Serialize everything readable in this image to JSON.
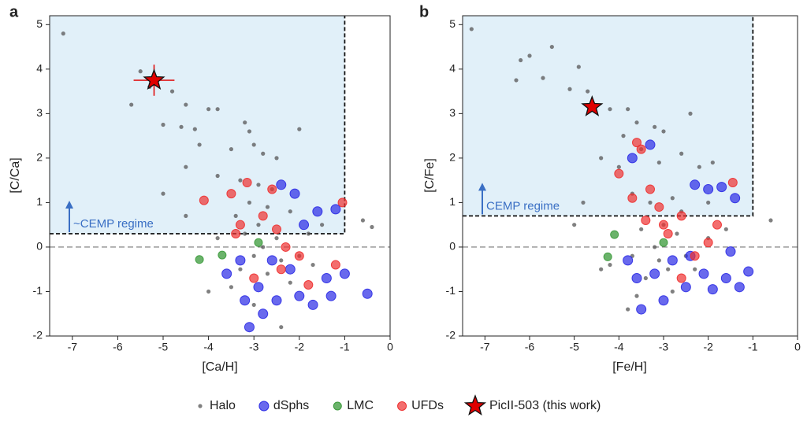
{
  "chart_data": [
    {
      "type": "scatter",
      "panel": "a",
      "xlabel": "[Ca/H]",
      "ylabel": "[C/Ca]",
      "xlim": [
        -7.5,
        0
      ],
      "ylim": [
        -2,
        5.2
      ],
      "xticks": [
        -7,
        -6,
        -5,
        -4,
        -3,
        -2,
        -1,
        0
      ],
      "yticks": [
        -2,
        -1,
        0,
        1,
        2,
        3,
        4,
        5
      ],
      "cemp": {
        "label": "~CEMP regime",
        "threshold_y": 0.3,
        "threshold_x": -1
      },
      "series": [
        {
          "name": "Halo",
          "color": "#555555",
          "x": [
            -7.2,
            -5.7,
            -5.5,
            -5.3,
            -4.8,
            -4.5,
            -4.3,
            -4.2,
            -4.6,
            -5.0,
            -4.0,
            -3.8,
            -3.2,
            -3.1,
            -3.5,
            -3.0,
            -2.8,
            -2.5,
            -2.0,
            -4.5,
            -3.8,
            -3.3,
            -2.9,
            -2.6,
            -3.1,
            -2.7,
            -3.4,
            -2.2,
            -2.9,
            -3.2,
            -2.5,
            -2.8,
            -3.0,
            -2.4,
            -3.3,
            -2.7,
            -2.0,
            -1.8,
            -1.5,
            -0.6,
            -0.4,
            -3.5,
            -3.0,
            -2.4,
            -4.5,
            -5.0,
            -4.0,
            -2.2,
            -1.7,
            -3.8
          ],
          "values": [
            4.8,
            3.2,
            3.95,
            3.6,
            3.5,
            3.2,
            2.65,
            2.3,
            2.7,
            2.75,
            3.1,
            3.1,
            2.8,
            2.6,
            2.2,
            2.3,
            2.1,
            2.0,
            2.65,
            1.8,
            1.6,
            1.5,
            1.4,
            1.3,
            1.0,
            0.9,
            0.7,
            0.8,
            0.5,
            0.3,
            0.2,
            0.0,
            -0.2,
            -0.3,
            -0.5,
            -0.6,
            -0.2,
            0.3,
            0.5,
            0.6,
            0.45,
            -0.9,
            -1.3,
            -1.8,
            0.7,
            1.2,
            -1.0,
            -0.8,
            -0.4,
            0.2
          ]
        },
        {
          "name": "dSphs",
          "color": "#2a2ae6",
          "x": [
            -3.1,
            -2.8,
            -2.5,
            -3.2,
            -2.0,
            -1.7,
            -1.3,
            -0.5,
            -1.0,
            -1.2,
            -2.4,
            -2.1,
            -1.6,
            -2.9,
            -3.6,
            -1.4,
            -2.6,
            -3.3,
            -2.2,
            -1.9
          ],
          "values": [
            -1.8,
            -1.5,
            -1.2,
            -1.2,
            -1.1,
            -1.3,
            -1.1,
            -1.05,
            -0.6,
            0.85,
            1.4,
            1.2,
            0.8,
            -0.9,
            -0.6,
            -0.7,
            -0.3,
            -0.3,
            -0.5,
            0.5
          ]
        },
        {
          "name": "LMC",
          "color": "#3a9a3a",
          "x": [
            -4.2,
            -3.7,
            -2.9
          ],
          "values": [
            -0.28,
            -0.18,
            0.1
          ]
        },
        {
          "name": "UFDs",
          "color": "#ee3030",
          "x": [
            -3.15,
            -3.5,
            -4.1,
            -2.6,
            -1.05,
            -1.2,
            -2.4,
            -3.4,
            -2.0,
            -2.8,
            -3.0,
            -1.8,
            -2.3,
            -3.3,
            -2.5
          ],
          "values": [
            1.45,
            1.2,
            1.05,
            1.3,
            1.0,
            -0.4,
            -0.5,
            0.3,
            -0.2,
            0.7,
            -0.7,
            -0.85,
            0.0,
            0.5,
            0.4
          ]
        },
        {
          "name": "PicII-503 (this work)",
          "color": "#e00000",
          "x": [
            -5.2
          ],
          "values": [
            3.75
          ],
          "xerr": [
            0.45
          ],
          "yerr": [
            0.35
          ]
        }
      ]
    },
    {
      "type": "scatter",
      "panel": "b",
      "xlabel": "[Fe/H]",
      "ylabel": "[C/Fe]",
      "xlim": [
        -7.5,
        0
      ],
      "ylim": [
        -2,
        5.2
      ],
      "xticks": [
        -7,
        -6,
        -5,
        -4,
        -3,
        -2,
        -1,
        0
      ],
      "yticks": [
        -2,
        -1,
        0,
        1,
        2,
        3,
        4,
        5
      ],
      "cemp": {
        "label": "CEMP regime",
        "threshold_y": 0.7,
        "threshold_x": -1
      },
      "series": [
        {
          "color": "#555555",
          "x": [
            -7.3,
            -6.3,
            -6.2,
            -6.0,
            -5.5,
            -5.1,
            -5.7,
            -4.9,
            -4.7,
            -4.2,
            -3.8,
            -3.6,
            -3.2,
            -3.0,
            -2.4,
            -3.9,
            -4.0,
            -4.4,
            -3.5,
            -3.1,
            -2.6,
            -1.9,
            -2.2,
            -3.7,
            -3.3,
            -2.8,
            -2.0,
            -4.8,
            -5.0,
            -3.0,
            -2.7,
            -3.2,
            -2.5,
            -2.9,
            -3.4,
            -2.3,
            -3.6,
            -3.8,
            -4.4,
            -4.2,
            -2.0,
            -1.6,
            -0.6,
            -3.5,
            -2.6,
            -3.1,
            -2.8,
            -3.7
          ],
          "values": [
            4.9,
            3.75,
            4.2,
            4.3,
            4.5,
            3.55,
            3.8,
            4.05,
            3.5,
            3.1,
            3.1,
            2.8,
            2.7,
            2.6,
            3.0,
            2.5,
            1.8,
            2.0,
            2.2,
            1.9,
            2.1,
            1.9,
            1.8,
            1.2,
            1.0,
            1.1,
            1.0,
            1.0,
            0.5,
            0.5,
            0.3,
            0.0,
            -0.2,
            -0.5,
            -0.7,
            -0.5,
            -1.1,
            -1.4,
            -0.5,
            -0.4,
            0.2,
            0.4,
            0.6,
            0.4,
            0.8,
            -0.3,
            -1.0,
            -0.2
          ]
        },
        {
          "color": "#2a2ae6",
          "x": [
            -3.5,
            -3.0,
            -2.5,
            -1.9,
            -1.3,
            -1.1,
            -1.6,
            -2.1,
            -3.8,
            -3.6,
            -2.3,
            -2.0,
            -1.7,
            -3.3,
            -3.7,
            -1.4,
            -2.8,
            -2.4,
            -3.2,
            -1.5
          ],
          "values": [
            -1.4,
            -1.2,
            -0.9,
            -0.95,
            -0.9,
            -0.55,
            -0.7,
            -0.6,
            -0.3,
            -0.7,
            1.4,
            1.3,
            1.35,
            2.3,
            2.0,
            1.1,
            -0.3,
            -0.2,
            -0.6,
            -0.1
          ]
        },
        {
          "color": "#3a9a3a",
          "x": [
            -4.1,
            -4.25,
            -3.0
          ],
          "values": [
            0.28,
            -0.22,
            0.1
          ]
        },
        {
          "color": "#ee3030",
          "x": [
            -3.6,
            -3.5,
            -4.0,
            -3.3,
            -3.7,
            -1.45,
            -2.6,
            -3.1,
            -2.0,
            -1.8,
            -2.6,
            -3.4,
            -2.9,
            -2.3,
            -3.0
          ],
          "values": [
            2.35,
            2.2,
            1.65,
            1.3,
            1.1,
            1.45,
            0.7,
            0.9,
            0.1,
            0.5,
            -0.7,
            0.6,
            0.3,
            -0.2,
            0.5
          ]
        },
        {
          "color": "#e00000",
          "x": [
            -4.6
          ],
          "values": [
            3.15
          ]
        }
      ]
    }
  ]
}
